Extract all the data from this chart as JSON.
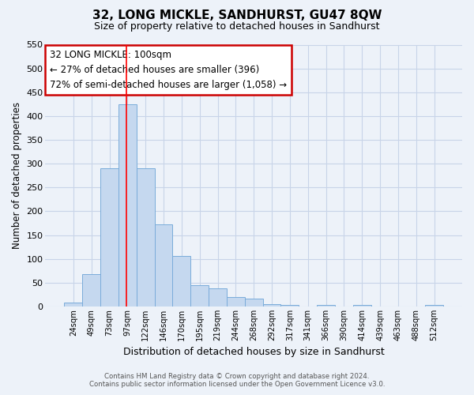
{
  "title": "32, LONG MICKLE, SANDHURST, GU47 8QW",
  "subtitle": "Size of property relative to detached houses in Sandhurst",
  "xlabel": "Distribution of detached houses by size in Sandhurst",
  "ylabel": "Number of detached properties",
  "bar_labels": [
    "24sqm",
    "49sqm",
    "73sqm",
    "97sqm",
    "122sqm",
    "146sqm",
    "170sqm",
    "195sqm",
    "219sqm",
    "244sqm",
    "268sqm",
    "292sqm",
    "317sqm",
    "341sqm",
    "366sqm",
    "390sqm",
    "414sqm",
    "439sqm",
    "463sqm",
    "488sqm",
    "512sqm"
  ],
  "bar_values": [
    8,
    68,
    291,
    425,
    290,
    173,
    106,
    44,
    38,
    20,
    17,
    5,
    3,
    0,
    3,
    0,
    3,
    0,
    0,
    0,
    3
  ],
  "bar_color": "#c5d8ef",
  "bar_edgecolor": "#7aacda",
  "annotation_text1": "32 LONG MICKLE: 100sqm",
  "annotation_text2": "← 27% of detached houses are smaller (396)",
  "annotation_text3": "72% of semi-detached houses are larger (1,058) →",
  "annotation_box_edgecolor": "#cc0000",
  "red_line_index": 3,
  "ylim": [
    0,
    550
  ],
  "yticks": [
    0,
    50,
    100,
    150,
    200,
    250,
    300,
    350,
    400,
    450,
    500,
    550
  ],
  "footer_line1": "Contains HM Land Registry data © Crown copyright and database right 2024.",
  "footer_line2": "Contains public sector information licensed under the Open Government Licence v3.0.",
  "bg_color": "#edf2f9",
  "plot_bg_color": "#edf2f9",
  "grid_color": "#c8d4e8"
}
